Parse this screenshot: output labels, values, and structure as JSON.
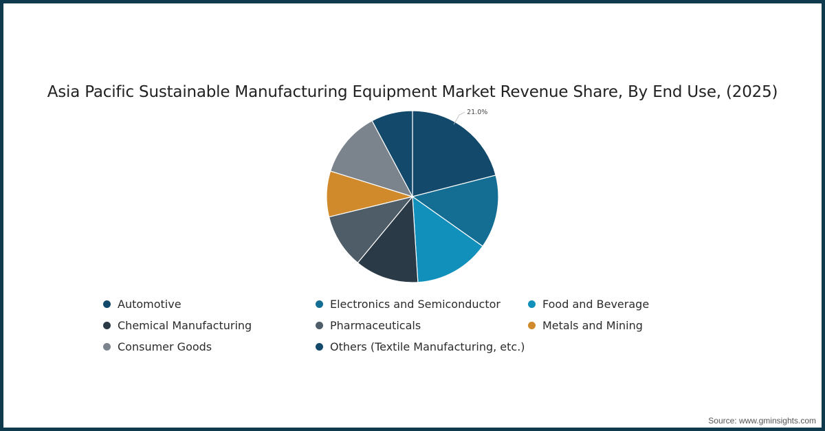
{
  "title": "Asia Pacific Sustainable Manufacturing Equipment Market Revenue Share, By End Use, (2025)",
  "source": "Source: www.gminsights.com",
  "colors": {
    "border": "#0f3a4d",
    "background": "#ffffff"
  },
  "chart_data": {
    "type": "pie",
    "title": "Asia Pacific Sustainable Manufacturing Equipment Market Revenue Share, By End Use, (2025)",
    "categories": [
      "Automotive",
      "Electronics and Semiconductor",
      "Food and Beverage",
      "Chemical Manufacturing",
      "Pharmaceuticals",
      "Metals and Mining",
      "Consumer Goods",
      "Others (Textile Manufacturing, etc.)"
    ],
    "values": [
      21.0,
      13.8,
      14.2,
      12.0,
      10.2,
      8.6,
      12.4,
      7.8
    ],
    "unit": "%",
    "colors": [
      "#13496b",
      "#146e93",
      "#1190bb",
      "#2b3a47",
      "#4f5d68",
      "#d08a2c",
      "#7b838c",
      "#13496b"
    ],
    "data_labels": [
      {
        "category": "Automotive",
        "text": "21.0%"
      }
    ],
    "start_angle_deg": 0,
    "direction": "clockwise",
    "legend_position": "bottom"
  },
  "legend": {
    "items": [
      {
        "label": "Automotive",
        "color": "#13496b"
      },
      {
        "label": "Electronics and Semiconductor",
        "color": "#146e93"
      },
      {
        "label": "Food and Beverage",
        "color": "#1190bb"
      },
      {
        "label": "Chemical Manufacturing",
        "color": "#2b3a47"
      },
      {
        "label": "Pharmaceuticals",
        "color": "#4f5d68"
      },
      {
        "label": "Metals and Mining",
        "color": "#d08a2c"
      },
      {
        "label": "Consumer Goods",
        "color": "#7b838c"
      },
      {
        "label": "Others (Textile Manufacturing, etc.)",
        "color": "#13496b"
      }
    ]
  }
}
